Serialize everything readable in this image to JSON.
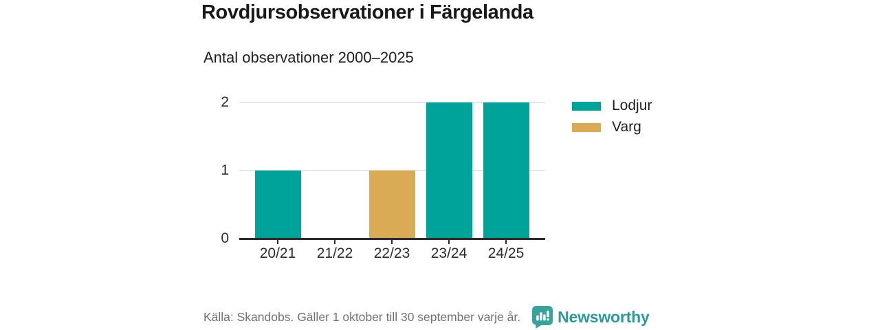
{
  "header": {
    "title": "Rovdjursobservationer i Färgelanda",
    "subtitle": "Antal observationer 2000–2025"
  },
  "chart_data": {
    "type": "bar",
    "title": "Rovdjursobservationer i Färgelanda",
    "subtitle": "Antal observationer 2000–2025",
    "categories": [
      "20/21",
      "21/22",
      "22/23",
      "23/24",
      "24/25"
    ],
    "series": [
      {
        "name": "Lodjur",
        "color": "#00a39a",
        "values": [
          1,
          0,
          0,
          2,
          2
        ]
      },
      {
        "name": "Varg",
        "color": "#dbaa55",
        "values": [
          0,
          0,
          1,
          0,
          0
        ]
      }
    ],
    "xlabel": "",
    "ylabel": "",
    "yticks": [
      0,
      1,
      2
    ],
    "ylim": [
      0,
      2
    ],
    "grid": true,
    "legend_position": "right"
  },
  "legend": {
    "items": [
      {
        "label": "Lodjur",
        "color": "#00a39a"
      },
      {
        "label": "Varg",
        "color": "#dbaa55"
      }
    ]
  },
  "footer": {
    "source": "Källa: Skandobs. Gäller 1 oktober till 30 september varje år.",
    "brand": "Newsworthy",
    "brand_color": "#2d9a97",
    "logo_icon": "newsworthy-speech-bubble-bars-icon",
    "logo_color": "#38a29d"
  },
  "colors": {
    "accent_teal": "#00a39a",
    "accent_gold": "#dbaa55",
    "axis": "#2a2a2d",
    "gridline": "#e7e7e7",
    "text_dark": "#1f1f1f",
    "text_muted": "#70707a"
  }
}
